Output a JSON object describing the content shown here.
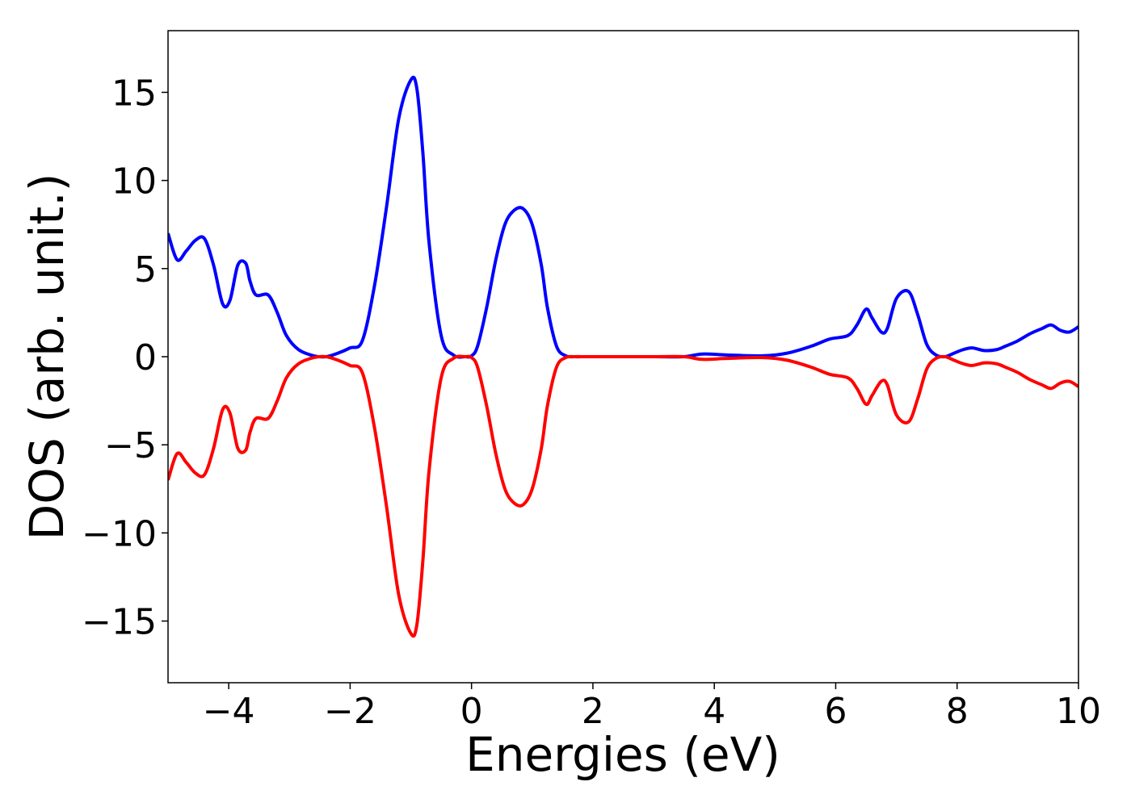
{
  "chart_data": {
    "type": "line",
    "title": "",
    "xlabel": "Energies (eV)",
    "ylabel": "DOS (arb. unit.)",
    "xlim": [
      -5,
      10
    ],
    "ylim": [
      -18.5,
      18.5
    ],
    "grid": false,
    "legend": "none",
    "x_ticks": [
      -4,
      -2,
      0,
      2,
      4,
      6,
      8,
      10
    ],
    "x_tick_labels": [
      "−4",
      "−2",
      "0",
      "2",
      "4",
      "6",
      "8",
      "10"
    ],
    "y_ticks": [
      -15,
      -10,
      -5,
      0,
      5,
      10,
      15
    ],
    "y_tick_labels": [
      "−15",
      "−10",
      "−5",
      "0",
      "5",
      "10",
      "15"
    ],
    "colors": {
      "spin_up": "#0000ff",
      "spin_down": "#ff0000",
      "axes": "#000000"
    },
    "x": [
      -5.0,
      -4.85,
      -4.7,
      -4.55,
      -4.4,
      -4.25,
      -4.1,
      -3.98,
      -3.85,
      -3.72,
      -3.65,
      -3.55,
      -3.35,
      -3.2,
      -3.05,
      -2.85,
      -2.6,
      -2.4,
      -2.2,
      -2.0,
      -1.8,
      -1.6,
      -1.4,
      -1.2,
      -1.0,
      -0.9,
      -0.8,
      -0.7,
      -0.5,
      -0.3,
      -0.1,
      0.0,
      0.1,
      0.25,
      0.4,
      0.55,
      0.7,
      0.85,
      1.0,
      1.15,
      1.25,
      1.4,
      1.55,
      1.7,
      1.85,
      2.0,
      2.5,
      3.0,
      3.5,
      3.8,
      4.2,
      4.8,
      5.2,
      5.6,
      5.9,
      6.2,
      6.35,
      6.5,
      6.6,
      6.75,
      6.85,
      7.0,
      7.2,
      7.35,
      7.5,
      7.65,
      7.8,
      7.95,
      8.1,
      8.25,
      8.45,
      8.65,
      8.8,
      9.0,
      9.2,
      9.4,
      9.55,
      9.7,
      9.85,
      10.0
    ],
    "series": [
      {
        "values": [
          7.0,
          5.5,
          6.0,
          6.6,
          6.7,
          5.2,
          3.0,
          3.2,
          5.2,
          5.3,
          4.3,
          3.5,
          3.5,
          2.5,
          1.2,
          0.4,
          0.05,
          0.0,
          0.2,
          0.5,
          0.9,
          4.0,
          8.5,
          13.5,
          15.7,
          15.2,
          11.5,
          6.5,
          1.2,
          0.1,
          0.0,
          0.05,
          0.6,
          2.8,
          5.5,
          7.5,
          8.3,
          8.4,
          7.5,
          5.2,
          2.8,
          0.6,
          0.05,
          0.0,
          0.0,
          0.0,
          0.0,
          0.0,
          0.0,
          0.15,
          0.1,
          0.05,
          0.2,
          0.6,
          1.0,
          1.2,
          1.8,
          2.7,
          2.2,
          1.4,
          1.6,
          3.3,
          3.7,
          2.4,
          0.7,
          0.1,
          0.0,
          0.2,
          0.4,
          0.5,
          0.35,
          0.4,
          0.6,
          0.9,
          1.3,
          1.6,
          1.8,
          1.5,
          1.4,
          1.7
        ]
      },
      {
        "values": [
          -7.0,
          -5.5,
          -6.0,
          -6.6,
          -6.7,
          -5.2,
          -3.0,
          -3.2,
          -5.2,
          -5.3,
          -4.3,
          -3.5,
          -3.5,
          -2.5,
          -1.2,
          -0.4,
          -0.05,
          0.0,
          -0.2,
          -0.5,
          -0.9,
          -4.0,
          -8.5,
          -13.5,
          -15.7,
          -15.2,
          -11.5,
          -6.5,
          -1.2,
          -0.1,
          0.0,
          -0.05,
          -0.6,
          -2.8,
          -5.5,
          -7.5,
          -8.3,
          -8.4,
          -7.5,
          -5.2,
          -2.8,
          -0.6,
          -0.05,
          0.0,
          0.0,
          0.0,
          0.0,
          0.0,
          0.0,
          -0.15,
          -0.1,
          -0.05,
          -0.2,
          -0.6,
          -1.0,
          -1.2,
          -1.8,
          -2.7,
          -2.2,
          -1.4,
          -1.6,
          -3.3,
          -3.7,
          -2.4,
          -0.7,
          -0.1,
          0.0,
          -0.2,
          -0.4,
          -0.5,
          -0.35,
          -0.4,
          -0.6,
          -0.9,
          -1.3,
          -1.6,
          -1.8,
          -1.5,
          -1.4,
          -1.7
        ]
      }
    ]
  }
}
